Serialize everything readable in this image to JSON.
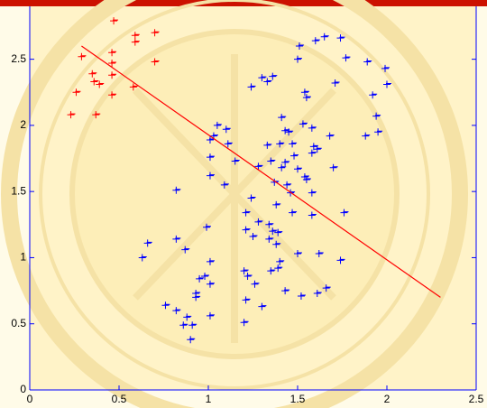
{
  "chart_data": {
    "type": "scatter",
    "xlim": [
      0,
      2.5
    ],
    "ylim": [
      0,
      2.9
    ],
    "xticks": [
      0,
      0.5,
      1,
      1.5,
      2,
      2.5
    ],
    "yticks": [
      0,
      0.5,
      1,
      1.5,
      2,
      2.5
    ],
    "axis_color": "#0000ff",
    "series": [
      {
        "color": "#ff0000",
        "x": [
          0.47,
          0.59,
          0.59,
          0.7,
          0.29,
          0.46,
          0.35,
          0.46,
          0.26,
          0.36,
          0.39,
          0.58,
          0.23,
          0.37,
          0.46,
          0.7,
          0.46
        ],
        "values": [
          2.79,
          2.68,
          2.63,
          2.7,
          2.52,
          2.55,
          2.39,
          2.38,
          2.25,
          2.33,
          2.31,
          2.29,
          2.08,
          2.08,
          2.23,
          2.48,
          2.47
        ]
      },
      {
        "color": "#0000ff",
        "x": [
          1.65,
          1.6,
          1.74,
          1.51,
          1.77,
          1.5,
          1.89,
          1.99,
          1.71,
          2.0,
          1.36,
          1.3,
          1.33,
          1.24,
          1.54,
          1.55,
          1.92,
          1.94,
          1.88,
          1.95,
          1.41,
          1.05,
          1.1,
          1.03,
          1.01,
          1.43,
          1.45,
          1.4,
          1.47,
          1.33,
          1.53,
          1.58,
          1.59,
          1.68,
          1.61,
          1.11,
          1.15,
          1.28,
          1.35,
          1.43,
          1.5,
          1.48,
          1.41,
          1.58,
          1.7,
          1.01,
          1.01,
          1.54,
          1.55,
          1.37,
          1.44,
          1.46,
          1.58,
          0.82,
          1.09,
          1.24,
          1.38,
          1.47,
          1.58,
          1.76,
          1.21,
          1.28,
          1.34,
          1.36,
          1.39,
          1.21,
          0.99,
          1.34,
          0.82,
          0.66,
          0.63,
          1.25,
          1.38,
          1.5,
          1.62,
          1.74,
          0.87,
          1.01,
          1.4,
          1.2,
          1.35,
          1.39,
          1.22,
          0.98,
          0.95,
          1.01,
          1.26,
          1.66,
          1.61,
          1.43,
          1.52,
          0.93,
          0.93,
          1.21,
          0.76,
          0.82,
          1.3,
          0.88,
          1.01,
          0.86,
          0.91,
          1.2,
          0.9
        ],
        "values": [
          2.67,
          2.64,
          2.66,
          2.6,
          2.51,
          2.5,
          2.48,
          2.43,
          2.32,
          2.31,
          2.37,
          2.36,
          2.33,
          2.29,
          2.25,
          2.21,
          2.23,
          2.07,
          1.92,
          1.95,
          2.06,
          2.0,
          1.97,
          1.92,
          1.89,
          1.96,
          1.95,
          1.86,
          1.86,
          1.85,
          2.01,
          1.98,
          1.84,
          1.92,
          1.82,
          1.86,
          1.73,
          1.69,
          1.73,
          1.72,
          1.67,
          1.77,
          1.68,
          1.79,
          1.68,
          1.76,
          1.62,
          1.61,
          1.59,
          1.57,
          1.55,
          1.49,
          1.49,
          1.51,
          1.55,
          1.45,
          1.4,
          1.34,
          1.32,
          1.34,
          1.34,
          1.27,
          1.25,
          1.2,
          1.19,
          1.21,
          1.23,
          1.14,
          1.14,
          1.11,
          1.0,
          1.16,
          1.1,
          1.03,
          1.03,
          0.98,
          1.06,
          0.97,
          0.97,
          0.9,
          0.9,
          0.92,
          0.86,
          0.86,
          0.84,
          0.8,
          0.8,
          0.77,
          0.73,
          0.75,
          0.71,
          0.73,
          0.7,
          0.68,
          0.64,
          0.6,
          0.63,
          0.55,
          0.56,
          0.49,
          0.49,
          0.51,
          0.38
        ]
      }
    ],
    "lines": [
      {
        "color": "#ff0000",
        "x": [
          0.29,
          2.3
        ],
        "values": [
          2.6,
          0.7
        ]
      }
    ]
  }
}
